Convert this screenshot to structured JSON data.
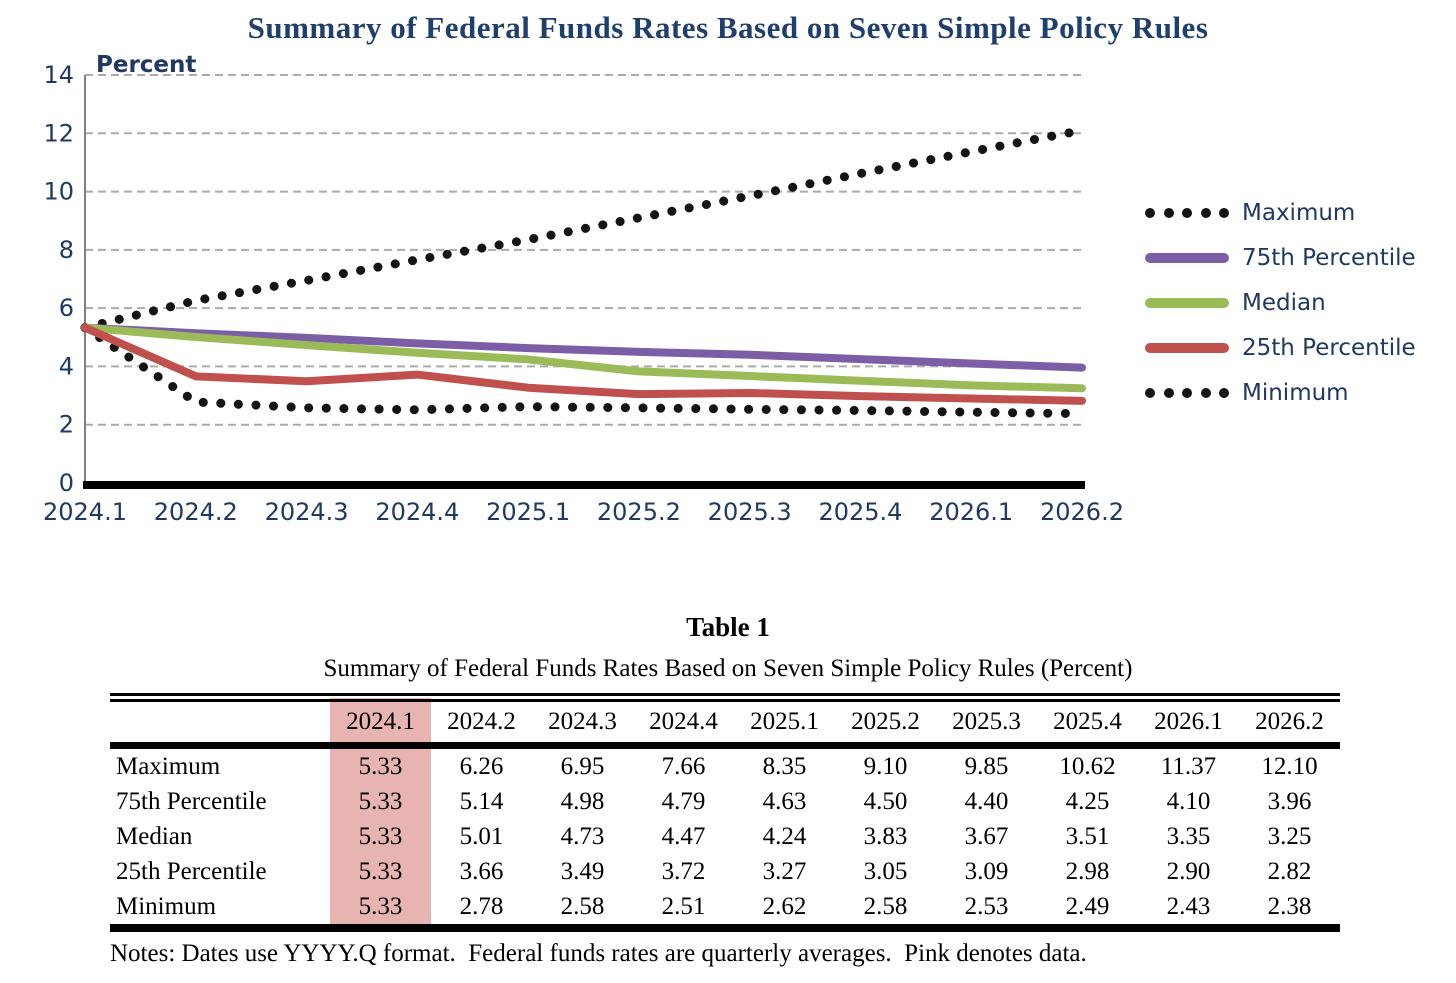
{
  "title": "Summary of Federal Funds Rates Based on Seven Simple Policy Rules",
  "chart_data": {
    "type": "line",
    "title": "Summary of Federal Funds Rates Based on Seven Simple Policy Rules",
    "ylabel": "Percent",
    "xlabel": "",
    "categories": [
      "2024.1",
      "2024.2",
      "2024.3",
      "2024.4",
      "2025.1",
      "2025.2",
      "2025.3",
      "2025.4",
      "2026.1",
      "2026.2"
    ],
    "ylim": [
      0,
      14
    ],
    "yticks": [
      0,
      2,
      4,
      6,
      8,
      10,
      12,
      14
    ],
    "grid": true,
    "legend_position": "right",
    "series": [
      {
        "name": "Maximum",
        "style": "dotted",
        "color": "#141414",
        "values": [
          5.33,
          6.26,
          6.95,
          7.66,
          8.35,
          9.1,
          9.85,
          10.62,
          11.37,
          12.1
        ]
      },
      {
        "name": "75th Percentile",
        "style": "solid",
        "color": "#7C5EA6",
        "values": [
          5.33,
          5.14,
          4.98,
          4.79,
          4.63,
          4.5,
          4.4,
          4.25,
          4.1,
          3.96
        ]
      },
      {
        "name": "Median",
        "style": "solid",
        "color": "#9BBB59",
        "values": [
          5.33,
          5.01,
          4.73,
          4.47,
          4.24,
          3.83,
          3.67,
          3.51,
          3.35,
          3.25
        ]
      },
      {
        "name": "25th Percentile",
        "style": "solid",
        "color": "#C0504D",
        "values": [
          5.33,
          3.66,
          3.49,
          3.72,
          3.27,
          3.05,
          3.09,
          2.98,
          2.9,
          2.82
        ]
      },
      {
        "name": "Minimum",
        "style": "dotted",
        "color": "#141414",
        "values": [
          5.33,
          2.78,
          2.58,
          2.51,
          2.62,
          2.58,
          2.53,
          2.49,
          2.43,
          2.38
        ]
      }
    ]
  },
  "table": {
    "title": "Table 1",
    "subtitle": "Summary of Federal Funds Rates Based on Seven Simple Policy Rules (Percent)",
    "columns": [
      "2024.1",
      "2024.2",
      "2024.3",
      "2024.4",
      "2025.1",
      "2025.2",
      "2025.3",
      "2025.4",
      "2026.1",
      "2026.2"
    ],
    "highlighted_column": "2024.1",
    "rows": [
      {
        "label": "Maximum",
        "values": [
          "5.33",
          "6.26",
          "6.95",
          "7.66",
          "8.35",
          "9.10",
          "9.85",
          "10.62",
          "11.37",
          "12.10"
        ]
      },
      {
        "label": "75th Percentile",
        "values": [
          "5.33",
          "5.14",
          "4.98",
          "4.79",
          "4.63",
          "4.50",
          "4.40",
          "4.25",
          "4.10",
          "3.96"
        ]
      },
      {
        "label": "Median",
        "values": [
          "5.33",
          "5.01",
          "4.73",
          "4.47",
          "4.24",
          "3.83",
          "3.67",
          "3.51",
          "3.35",
          "3.25"
        ]
      },
      {
        "label": "25th Percentile",
        "values": [
          "5.33",
          "3.66",
          "3.49",
          "3.72",
          "3.27",
          "3.05",
          "3.09",
          "2.98",
          "2.90",
          "2.82"
        ]
      },
      {
        "label": "Minimum",
        "values": [
          "5.33",
          "2.78",
          "2.58",
          "2.51",
          "2.62",
          "2.58",
          "2.53",
          "2.49",
          "2.43",
          "2.38"
        ]
      }
    ],
    "notes": "Notes: Dates use YYYY.Q format.  Federal funds rates are quarterly averages.  Pink denotes data."
  },
  "colors": {
    "title_text": "#1F406E",
    "axis_text": "#1F3864",
    "legend_text": "#1F3864",
    "grid_line": "#ABABAB",
    "axis_line": "#7F7F7F",
    "baseline": "#000000",
    "dotted_series": "#141414",
    "purple_75th": "#7C5EA6",
    "green_median": "#9BBB59",
    "red_25th": "#C0504D",
    "pink_highlight": "#E7B4B2"
  }
}
